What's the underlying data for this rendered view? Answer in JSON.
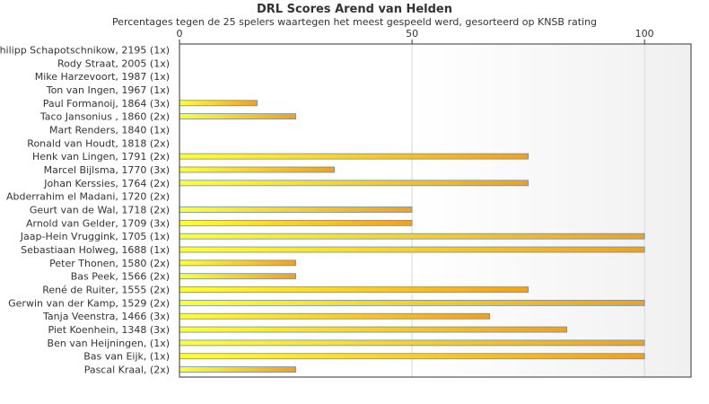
{
  "chart_data": {
    "type": "bar",
    "orientation": "horizontal",
    "title": "DRL Scores Arend van Helden",
    "subtitle": "Percentages tegen de 25 spelers waartegen het meest gespeeld werd, gesorteerd op KNSB rating",
    "xlim": [
      0,
      110
    ],
    "x_ticks": [
      "0",
      "50",
      "100"
    ],
    "grid": true,
    "categories": [
      "Philipp Schapotschnikow, 2195 (1x)",
      "Rody Straat, 2005 (1x)",
      "Mike Harzevoort, 1987 (1x)",
      "Ton van Ingen, 1967 (1x)",
      "Paul Formanoij, 1864 (3x)",
      "Taco Jansonius , 1860 (2x)",
      "Mart Renders, 1840 (1x)",
      "Ronald van Houdt, 1818 (2x)",
      "Henk van Lingen, 1791 (2x)",
      "Marcel Bijlsma, 1770 (3x)",
      "Johan Kerssies, 1764 (2x)",
      "Abderrahim el Madani, 1720 (2x)",
      "Geurt van de Wal, 1718 (2x)",
      "Arnold van Gelder, 1709 (3x)",
      "Jaap-Hein Vruggink, 1705 (1x)",
      "Sebastiaan Holweg, 1688 (1x)",
      "Peter Thonen, 1580 (2x)",
      "Bas Peek, 1566 (2x)",
      "René de Ruiter, 1555 (2x)",
      "Gerwin van der Kamp, 1529 (2x)",
      "Tanja Veenstra, 1466 (3x)",
      "Piet Koenhein, 1348 (3x)",
      "Ben van Heijningen,  (1x)",
      "Bas van Eijk,  (1x)",
      "Pascal Kraal,  (2x)"
    ],
    "values": [
      0,
      0,
      0,
      0,
      16.7,
      25,
      0,
      0,
      75,
      33.3,
      75,
      0,
      50,
      50,
      100,
      100,
      25,
      25,
      75,
      100,
      66.7,
      83.3,
      100,
      100,
      25
    ],
    "colors": {
      "bar_start": "#ffff33",
      "bar_end": "#f0a020",
      "bar_stroke": "#6a8fb0",
      "plot_bg": "#ffffff",
      "plot_bg_shade": "#f0f0f0",
      "grid": "#d8d8d8",
      "axis": "#333333"
    }
  }
}
